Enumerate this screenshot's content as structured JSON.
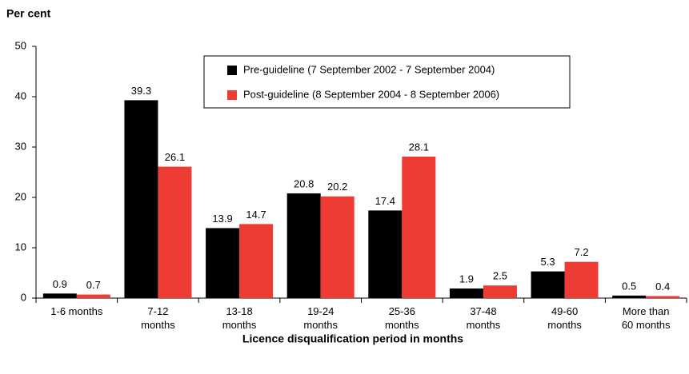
{
  "chart_data": {
    "type": "bar",
    "y_label": "Per cent",
    "x_label": "Licence disqualification period in months",
    "categories": [
      "1-6 months",
      "7-12\nmonths",
      "13-18\nmonths",
      "19-24\nmonths",
      "25-36\nmonths",
      "37-48\nmonths",
      "49-60\nmonths",
      "More than\n60 months"
    ],
    "series": [
      {
        "name": "Pre-guideline (7 September 2002 - 7 September 2004)",
        "color": "#000000",
        "values": [
          0.9,
          39.3,
          13.9,
          20.8,
          17.4,
          1.9,
          5.3,
          0.5
        ]
      },
      {
        "name": "Post-guideline (8 September 2004 - 8 September 2006)",
        "color": "#ee3b33",
        "values": [
          0.7,
          26.1,
          14.7,
          20.2,
          28.1,
          2.5,
          7.2,
          0.4
        ]
      }
    ],
    "ylim": [
      0,
      50
    ],
    "yticks": [
      0,
      10,
      20,
      30,
      40,
      50
    ],
    "grid": false,
    "legend": "top-right"
  }
}
